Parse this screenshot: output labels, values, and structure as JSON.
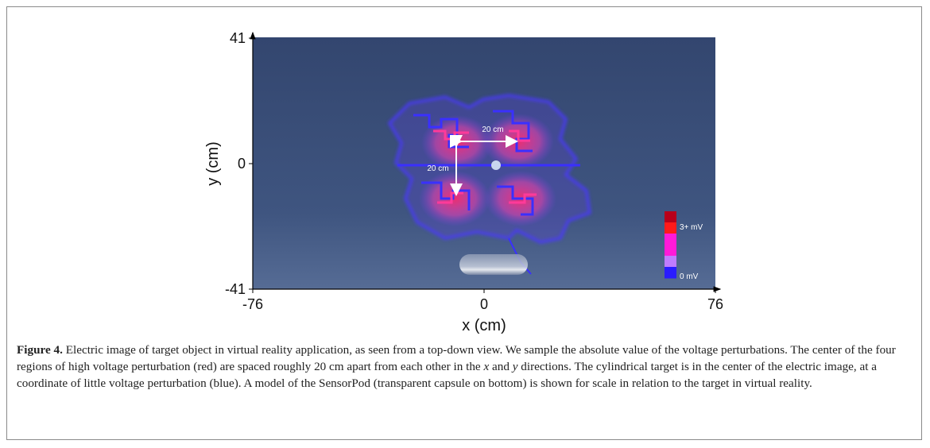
{
  "figure": {
    "xlim": [
      -76,
      76
    ],
    "ylim": [
      -41,
      41
    ],
    "xticks": [
      -76,
      0,
      76
    ],
    "yticks": [
      -41,
      0,
      41
    ],
    "xlabel": "x (cm)",
    "ylabel": "y (cm)",
    "annotations": [
      "20 cm",
      "20 cm"
    ],
    "colorbar": {
      "top_label": "3+ mV",
      "bottom_label": "0 mV",
      "colors": [
        "#b8001a",
        "#ff1a1a",
        "#ff1ad8",
        "#ff1ad8",
        "#c07cff",
        "#2a1cff"
      ]
    }
  },
  "caption": {
    "label": "Figure 4.",
    "segments": [
      {
        "text": " Electric image of target object in virtual reality application, as seen from a top-down view. We sample the absolute value of the voltage perturbations. The center of the four regions of high voltage perturbation (red) are spaced roughly 20  cm apart from each other in the ",
        "italic": false
      },
      {
        "text": "x",
        "italic": true
      },
      {
        "text": " and ",
        "italic": false
      },
      {
        "text": "y",
        "italic": true
      },
      {
        "text": " directions. The cylindrical target is in the center of the electric image, at a coordinate of little voltage perturbation (blue). A model of the SensorPod (transparent capsule on bottom) is shown for scale in relation to the target in virtual reality.",
        "italic": false
      }
    ]
  }
}
